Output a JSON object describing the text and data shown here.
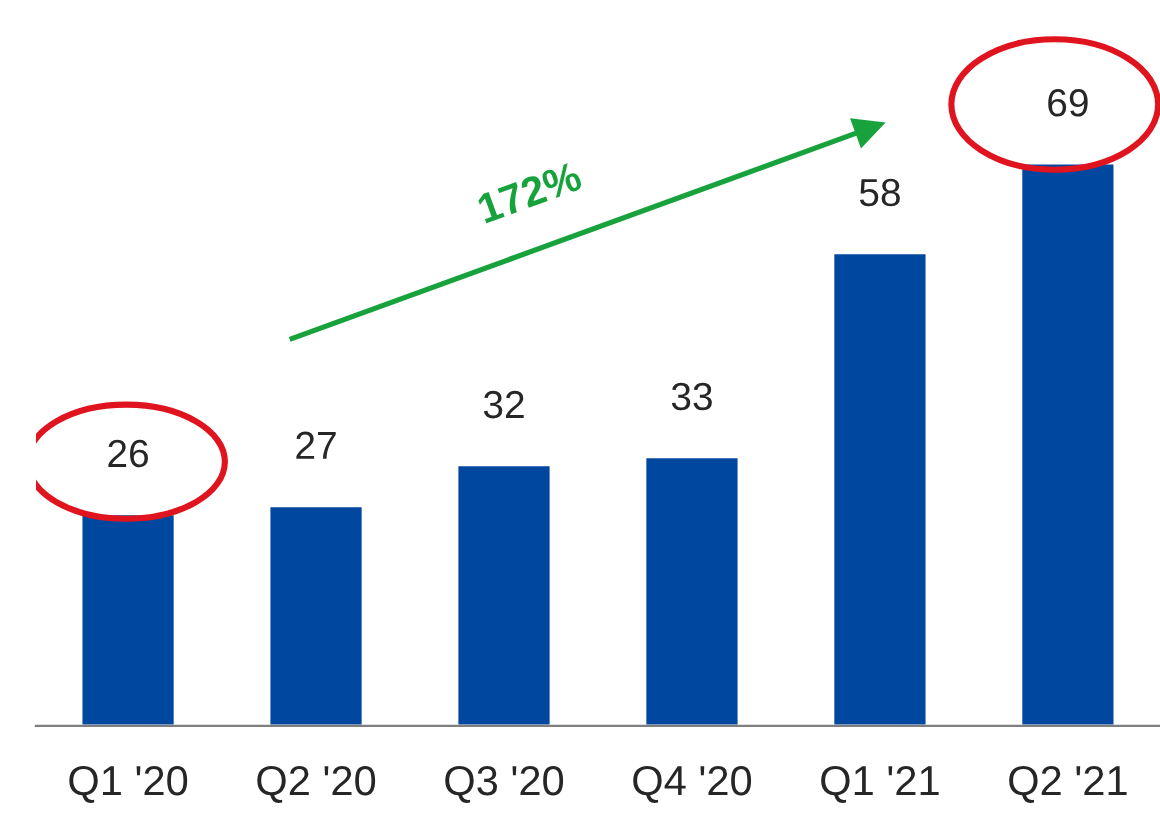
{
  "chart_data": {
    "type": "bar",
    "categories": [
      "Q1 '20",
      "Q2 '20",
      "Q3 '20",
      "Q4 '20",
      "Q1 '21",
      "Q2 '21"
    ],
    "values": [
      26,
      27,
      32,
      33,
      58,
      69
    ],
    "color": "#0047a0",
    "data_labels": true,
    "annotations": [
      "172%"
    ],
    "grid": false,
    "legend": false
  }
}
